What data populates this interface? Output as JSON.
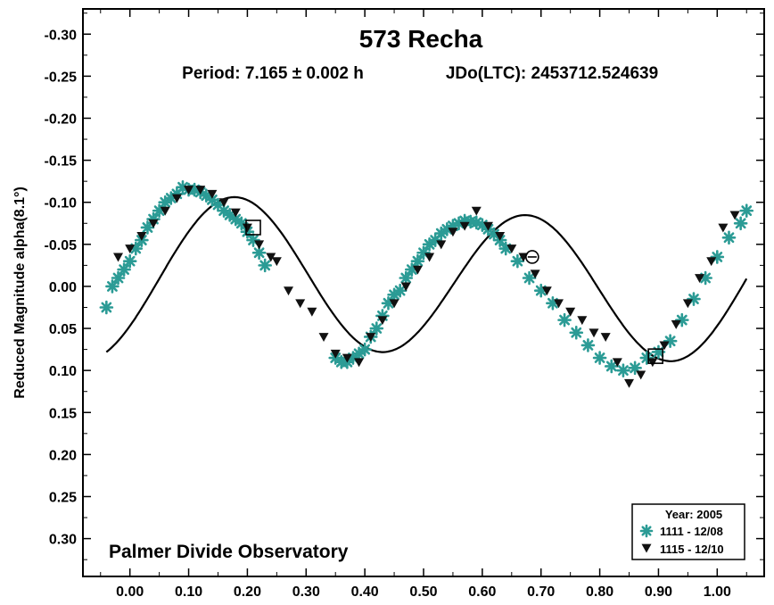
{
  "chart_data": {
    "type": "scatter",
    "title": "573 Recha",
    "subtitle_period": "Period: 7.165 ± 0.002 h",
    "subtitle_epoch": "JDo(LTC): 2453712.524639",
    "ylabel": "Reduced Magnitude alpha(8.1°)",
    "xlabel": "",
    "watermark": "Palmer Divide Observatory",
    "xlim": [
      -0.08,
      1.08
    ],
    "ylim": [
      -0.33,
      0.345
    ],
    "y_inverted": true,
    "x_ticks": [
      "0.00",
      "0.10",
      "0.20",
      "0.30",
      "0.40",
      "0.50",
      "0.60",
      "0.70",
      "0.80",
      "0.90",
      "1.00"
    ],
    "y_ticks": [
      "-0.30",
      "-0.25",
      "-0.20",
      "-0.15",
      "-0.10",
      "-0.05",
      "0.00",
      "0.05",
      "0.10",
      "0.15",
      "0.20",
      "0.25",
      "0.30"
    ],
    "legend": {
      "position": "bottom-right",
      "title": "Year: 2005",
      "entries": [
        {
          "label": "1111 - 12/08",
          "marker": "asterisk",
          "color": "#2b9b95"
        },
        {
          "label": "1115 - 12/10",
          "marker": "triangle-down",
          "color": "#111111"
        }
      ]
    },
    "fit_curve": {
      "mean": -0.006,
      "terms": [
        {
          "harmonic": 1,
          "cos": 0.0,
          "sin": -0.012
        },
        {
          "harmonic": 2,
          "cos": 0.053,
          "sin": -0.072
        }
      ],
      "color": "#000000"
    },
    "series": [
      {
        "name": "1111 - 12/08",
        "marker": "asterisk",
        "color": "#2b9b95",
        "x": [
          -0.04,
          -0.03,
          -0.02,
          -0.01,
          0.0,
          0.01,
          0.02,
          0.03,
          0.04,
          0.05,
          0.06,
          0.07,
          0.08,
          0.09,
          0.1,
          0.11,
          0.12,
          0.13,
          0.14,
          0.15,
          0.16,
          0.17,
          0.18,
          0.19,
          0.2,
          0.21,
          0.22,
          0.23,
          0.35,
          0.36,
          0.37,
          0.38,
          0.39,
          0.4,
          0.41,
          0.42,
          0.43,
          0.44,
          0.45,
          0.46,
          0.47,
          0.48,
          0.49,
          0.5,
          0.51,
          0.52,
          0.53,
          0.54,
          0.55,
          0.56,
          0.57,
          0.58,
          0.59,
          0.6,
          0.61,
          0.62,
          0.63,
          0.64,
          0.66,
          0.68,
          0.7,
          0.72,
          0.74,
          0.76,
          0.78,
          0.8,
          0.82,
          0.84,
          0.86,
          0.88,
          0.9,
          0.92,
          0.94,
          0.96,
          0.98,
          1.0,
          1.02,
          1.04,
          1.05
        ],
        "y": [
          0.025,
          0.0,
          -0.01,
          -0.02,
          -0.03,
          -0.045,
          -0.055,
          -0.07,
          -0.08,
          -0.09,
          -0.1,
          -0.105,
          -0.11,
          -0.118,
          -0.115,
          -0.115,
          -0.112,
          -0.108,
          -0.103,
          -0.097,
          -0.09,
          -0.085,
          -0.08,
          -0.075,
          -0.065,
          -0.055,
          -0.04,
          -0.025,
          0.085,
          0.09,
          0.09,
          0.085,
          0.08,
          0.075,
          0.06,
          0.05,
          0.035,
          0.02,
          0.01,
          0.005,
          -0.01,
          -0.02,
          -0.03,
          -0.04,
          -0.05,
          -0.055,
          -0.063,
          -0.068,
          -0.072,
          -0.075,
          -0.078,
          -0.077,
          -0.076,
          -0.073,
          -0.068,
          -0.062,
          -0.055,
          -0.045,
          -0.03,
          -0.01,
          0.005,
          0.02,
          0.04,
          0.055,
          0.07,
          0.085,
          0.095,
          0.1,
          0.097,
          0.085,
          0.078,
          0.065,
          0.04,
          0.015,
          -0.01,
          -0.035,
          -0.058,
          -0.075,
          -0.09
        ]
      },
      {
        "name": "1115 - 12/10",
        "marker": "triangle-down",
        "color": "#111111",
        "x": [
          -0.02,
          0.0,
          0.02,
          0.04,
          0.06,
          0.08,
          0.1,
          0.12,
          0.14,
          0.16,
          0.18,
          0.2,
          0.22,
          0.24,
          0.25,
          0.27,
          0.29,
          0.31,
          0.33,
          0.35,
          0.37,
          0.39,
          0.41,
          0.43,
          0.45,
          0.47,
          0.49,
          0.51,
          0.53,
          0.55,
          0.57,
          0.59,
          0.61,
          0.63,
          0.65,
          0.67,
          0.69,
          0.71,
          0.73,
          0.75,
          0.77,
          0.79,
          0.81,
          0.83,
          0.85,
          0.87,
          0.89,
          0.91,
          0.93,
          0.95,
          0.97,
          0.99,
          1.01,
          1.03
        ],
        "y": [
          -0.035,
          -0.045,
          -0.06,
          -0.075,
          -0.09,
          -0.105,
          -0.115,
          -0.115,
          -0.11,
          -0.1,
          -0.088,
          -0.07,
          -0.05,
          -0.035,
          -0.03,
          0.005,
          0.02,
          0.03,
          0.06,
          0.08,
          0.085,
          0.09,
          0.06,
          0.04,
          0.02,
          0.0,
          -0.02,
          -0.035,
          -0.05,
          -0.065,
          -0.072,
          -0.09,
          -0.072,
          -0.06,
          -0.045,
          -0.035,
          -0.015,
          0.005,
          0.02,
          0.03,
          0.04,
          0.055,
          0.06,
          0.09,
          0.115,
          0.105,
          0.09,
          0.07,
          0.045,
          0.02,
          -0.01,
          -0.03,
          -0.07,
          -0.085
        ]
      }
    ],
    "highlight_markers": [
      {
        "shape": "square",
        "x": 0.21,
        "y": -0.07
      },
      {
        "shape": "circle",
        "x": 0.685,
        "y": -0.035
      },
      {
        "shape": "square",
        "x": 0.895,
        "y": 0.083
      }
    ]
  }
}
